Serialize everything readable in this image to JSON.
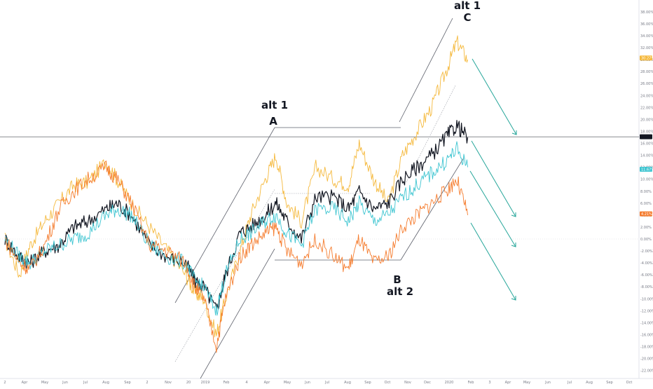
{
  "chart_data": {
    "type": "line",
    "title": "",
    "xlabel": "",
    "ylabel": "",
    "y_unit": "%",
    "ylim": [
      -23,
      40
    ],
    "grid": false,
    "x_tick_labels": [
      "2",
      "Apr",
      "May",
      "Jun",
      "Jul",
      "Aug",
      "Sep",
      "2",
      "Nov",
      "20",
      "2019",
      "Feb",
      "4",
      "Apr",
      "May",
      "Jun",
      "Jul",
      "Aug",
      "Sep",
      "Oct",
      "Nov",
      "Dec",
      "2020",
      "Feb",
      "3",
      "Apr",
      "May",
      "Jun",
      "Jul",
      "Aug",
      "Sep",
      "Oct"
    ],
    "y_tick_labels": [
      "38.00%",
      "36.00%",
      "34.00%",
      "32.00%",
      "30.00%",
      "28.00%",
      "26.00%",
      "24.00%",
      "22.00%",
      "20.00%",
      "18.00%",
      "16.00%",
      "14.00%",
      "12.00%",
      "10.00%",
      "8.00%",
      "6.00%",
      "4.00%",
      "2.00%",
      "0.00%",
      "-2.00%",
      "-4.00%",
      "-6.00%",
      "-8.00%",
      "-10.00%",
      "-12.00%",
      "-14.00%",
      "-16.00%",
      "-18.00%",
      "-20.00%",
      "-22.00%"
    ],
    "y_ticks": [
      38,
      36,
      34,
      32,
      30,
      28,
      26,
      24,
      22,
      20,
      18,
      16,
      14,
      12,
      10,
      8,
      6,
      4,
      2,
      0,
      -2,
      -4,
      -6,
      -8,
      -10,
      -12,
      -14,
      -16,
      -18,
      -20,
      -22
    ],
    "reference_line_y": 0,
    "last_value_line_y": 17.1,
    "series": [
      {
        "color": "#f5b93d",
        "last_label": "30.27%",
        "last_value": 30.27,
        "points": [
          [
            0,
            0
          ],
          [
            0.08,
            -6
          ],
          [
            0.14,
            -1
          ],
          [
            0.22,
            3
          ],
          [
            0.3,
            6
          ],
          [
            0.38,
            9
          ],
          [
            0.46,
            9.5
          ],
          [
            0.56,
            13
          ],
          [
            0.62,
            10
          ],
          [
            0.7,
            6
          ],
          [
            0.8,
            2
          ],
          [
            0.9,
            -2
          ],
          [
            1.0,
            -6
          ],
          [
            1.05,
            -9
          ],
          [
            1.1,
            -10
          ],
          [
            1.17,
            -16
          ],
          [
            1.22,
            -10
          ],
          [
            1.3,
            -2
          ],
          [
            1.36,
            4
          ],
          [
            1.44,
            10
          ],
          [
            1.5,
            14
          ],
          [
            1.56,
            6
          ],
          [
            1.64,
            3
          ],
          [
            1.72,
            12
          ],
          [
            1.82,
            10
          ],
          [
            1.9,
            9
          ],
          [
            1.96,
            16
          ],
          [
            2.04,
            10
          ],
          [
            2.12,
            6
          ],
          [
            2.2,
            14
          ],
          [
            2.28,
            18
          ],
          [
            2.36,
            22
          ],
          [
            2.44,
            28
          ],
          [
            2.5,
            33
          ],
          [
            2.56,
            30
          ]
        ]
      },
      {
        "color": "#131722",
        "last_value": 17.1,
        "points": [
          [
            0,
            0
          ],
          [
            0.08,
            -3
          ],
          [
            0.14,
            -4
          ],
          [
            0.22,
            -2
          ],
          [
            0.3,
            -1
          ],
          [
            0.38,
            2
          ],
          [
            0.46,
            3
          ],
          [
            0.56,
            5
          ],
          [
            0.62,
            6
          ],
          [
            0.7,
            4
          ],
          [
            0.8,
            -1
          ],
          [
            0.9,
            -3
          ],
          [
            1.0,
            -4
          ],
          [
            1.05,
            -7
          ],
          [
            1.1,
            -8
          ],
          [
            1.17,
            -12
          ],
          [
            1.22,
            -6
          ],
          [
            1.3,
            1
          ],
          [
            1.36,
            2
          ],
          [
            1.44,
            4
          ],
          [
            1.5,
            6
          ],
          [
            1.56,
            3
          ],
          [
            1.64,
            0
          ],
          [
            1.72,
            7
          ],
          [
            1.82,
            7
          ],
          [
            1.9,
            5
          ],
          [
            1.96,
            8
          ],
          [
            2.04,
            5
          ],
          [
            2.12,
            6
          ],
          [
            2.2,
            10
          ],
          [
            2.28,
            12
          ],
          [
            2.36,
            14
          ],
          [
            2.44,
            17
          ],
          [
            2.5,
            19
          ],
          [
            2.56,
            17
          ]
        ]
      },
      {
        "color": "#3ec5d1",
        "last_label": "11.67%",
        "last_value": 11.67,
        "points": [
          [
            0,
            0
          ],
          [
            0.08,
            -3
          ],
          [
            0.14,
            -4
          ],
          [
            0.22,
            -2
          ],
          [
            0.3,
            -1
          ],
          [
            0.38,
            0
          ],
          [
            0.46,
            1
          ],
          [
            0.56,
            4
          ],
          [
            0.62,
            5
          ],
          [
            0.7,
            4
          ],
          [
            0.8,
            -1
          ],
          [
            0.9,
            -3
          ],
          [
            1.0,
            -4
          ],
          [
            1.05,
            -7
          ],
          [
            1.1,
            -8
          ],
          [
            1.17,
            -12
          ],
          [
            1.22,
            -6
          ],
          [
            1.3,
            0
          ],
          [
            1.36,
            1
          ],
          [
            1.44,
            3
          ],
          [
            1.5,
            4
          ],
          [
            1.56,
            1
          ],
          [
            1.64,
            -1
          ],
          [
            1.72,
            5
          ],
          [
            1.82,
            5
          ],
          [
            1.9,
            3
          ],
          [
            1.96,
            6
          ],
          [
            2.04,
            3
          ],
          [
            2.12,
            4
          ],
          [
            2.2,
            7
          ],
          [
            2.28,
            9
          ],
          [
            2.36,
            11
          ],
          [
            2.44,
            13
          ],
          [
            2.5,
            15
          ],
          [
            2.56,
            12
          ]
        ]
      },
      {
        "color": "#f57c2e",
        "last_label": "4.21%",
        "last_value": 4.21,
        "points": [
          [
            0,
            0
          ],
          [
            0.08,
            -4
          ],
          [
            0.14,
            -5
          ],
          [
            0.22,
            -1
          ],
          [
            0.3,
            5
          ],
          [
            0.38,
            8
          ],
          [
            0.46,
            10
          ],
          [
            0.56,
            12
          ],
          [
            0.62,
            10
          ],
          [
            0.7,
            6
          ],
          [
            0.8,
            -1
          ],
          [
            0.9,
            -2
          ],
          [
            1.0,
            -4
          ],
          [
            1.05,
            -8
          ],
          [
            1.1,
            -10
          ],
          [
            1.17,
            -18
          ],
          [
            1.22,
            -10
          ],
          [
            1.3,
            -3
          ],
          [
            1.36,
            -1
          ],
          [
            1.44,
            1
          ],
          [
            1.5,
            2
          ],
          [
            1.56,
            -2
          ],
          [
            1.64,
            -4
          ],
          [
            1.72,
            0
          ],
          [
            1.82,
            -3
          ],
          [
            1.9,
            -5
          ],
          [
            1.96,
            0
          ],
          [
            2.04,
            -4
          ],
          [
            2.12,
            -3
          ],
          [
            2.2,
            2
          ],
          [
            2.28,
            4
          ],
          [
            2.36,
            6
          ],
          [
            2.44,
            8
          ],
          [
            2.5,
            10
          ],
          [
            2.56,
            4
          ]
        ]
      }
    ],
    "annotations": [
      {
        "text": "alt 1",
        "role": "alt1-top-label"
      },
      {
        "text": "C",
        "role": "wave-c-label"
      },
      {
        "text": "alt 1",
        "role": "alt1-mid-label"
      },
      {
        "text": "A",
        "role": "wave-a-label"
      },
      {
        "text": "B",
        "role": "wave-b-label"
      },
      {
        "text": "alt 2",
        "role": "alt2-label"
      }
    ]
  },
  "colors": {
    "background": "#ffffff",
    "axis_text": "#787b86",
    "annotation_text": "#131722",
    "trendline": "#5d606b",
    "projection_arrow": "#26a69a",
    "reference_line": "#b2b5be"
  }
}
